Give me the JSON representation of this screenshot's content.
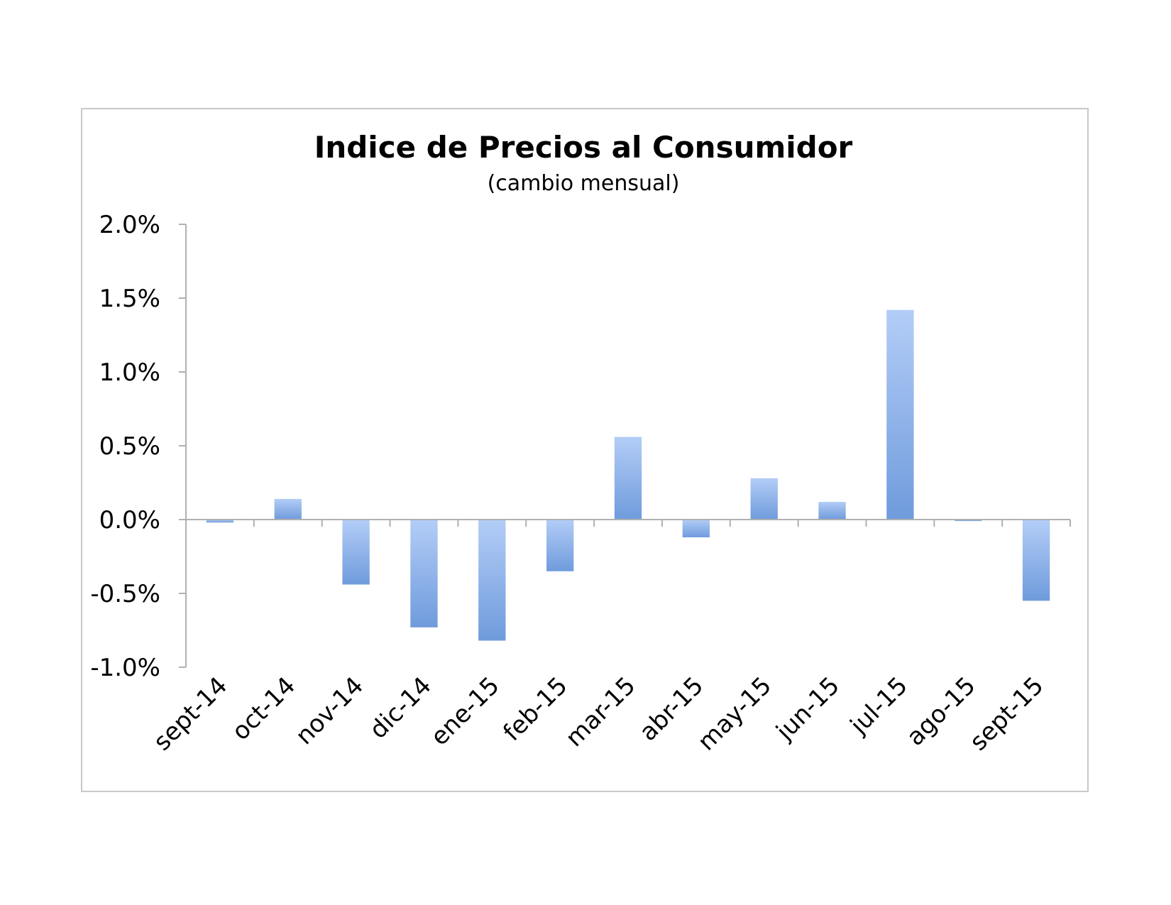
{
  "chart_data": {
    "type": "bar",
    "title": "Indice de Precios al Consumidor",
    "subtitle": "(cambio mensual)",
    "xlabel": "",
    "ylabel": "",
    "categories": [
      "sept-14",
      "oct-14",
      "nov-14",
      "dic-14",
      "ene-15",
      "feb-15",
      "mar-15",
      "abr-15",
      "may-15",
      "jun-15",
      "jul-15",
      "ago-15",
      "sept-15"
    ],
    "values": [
      -0.02,
      0.14,
      -0.44,
      -0.73,
      -0.82,
      -0.35,
      0.56,
      -0.12,
      0.28,
      0.12,
      1.42,
      -0.01,
      -0.55
    ],
    "ylim": [
      -1.0,
      2.0
    ],
    "yticks": [
      2.0,
      1.5,
      1.0,
      0.5,
      0.0,
      -0.5,
      -1.0
    ],
    "ytick_labels": [
      "2.0%",
      "1.5%",
      "1.0%",
      "0.5%",
      "0.0%",
      "-0.5%",
      "-1.0%"
    ],
    "grid": false,
    "legend": "none",
    "bar_color_top": "#b3cdf7",
    "bar_color_bottom": "#6f9bdc"
  }
}
